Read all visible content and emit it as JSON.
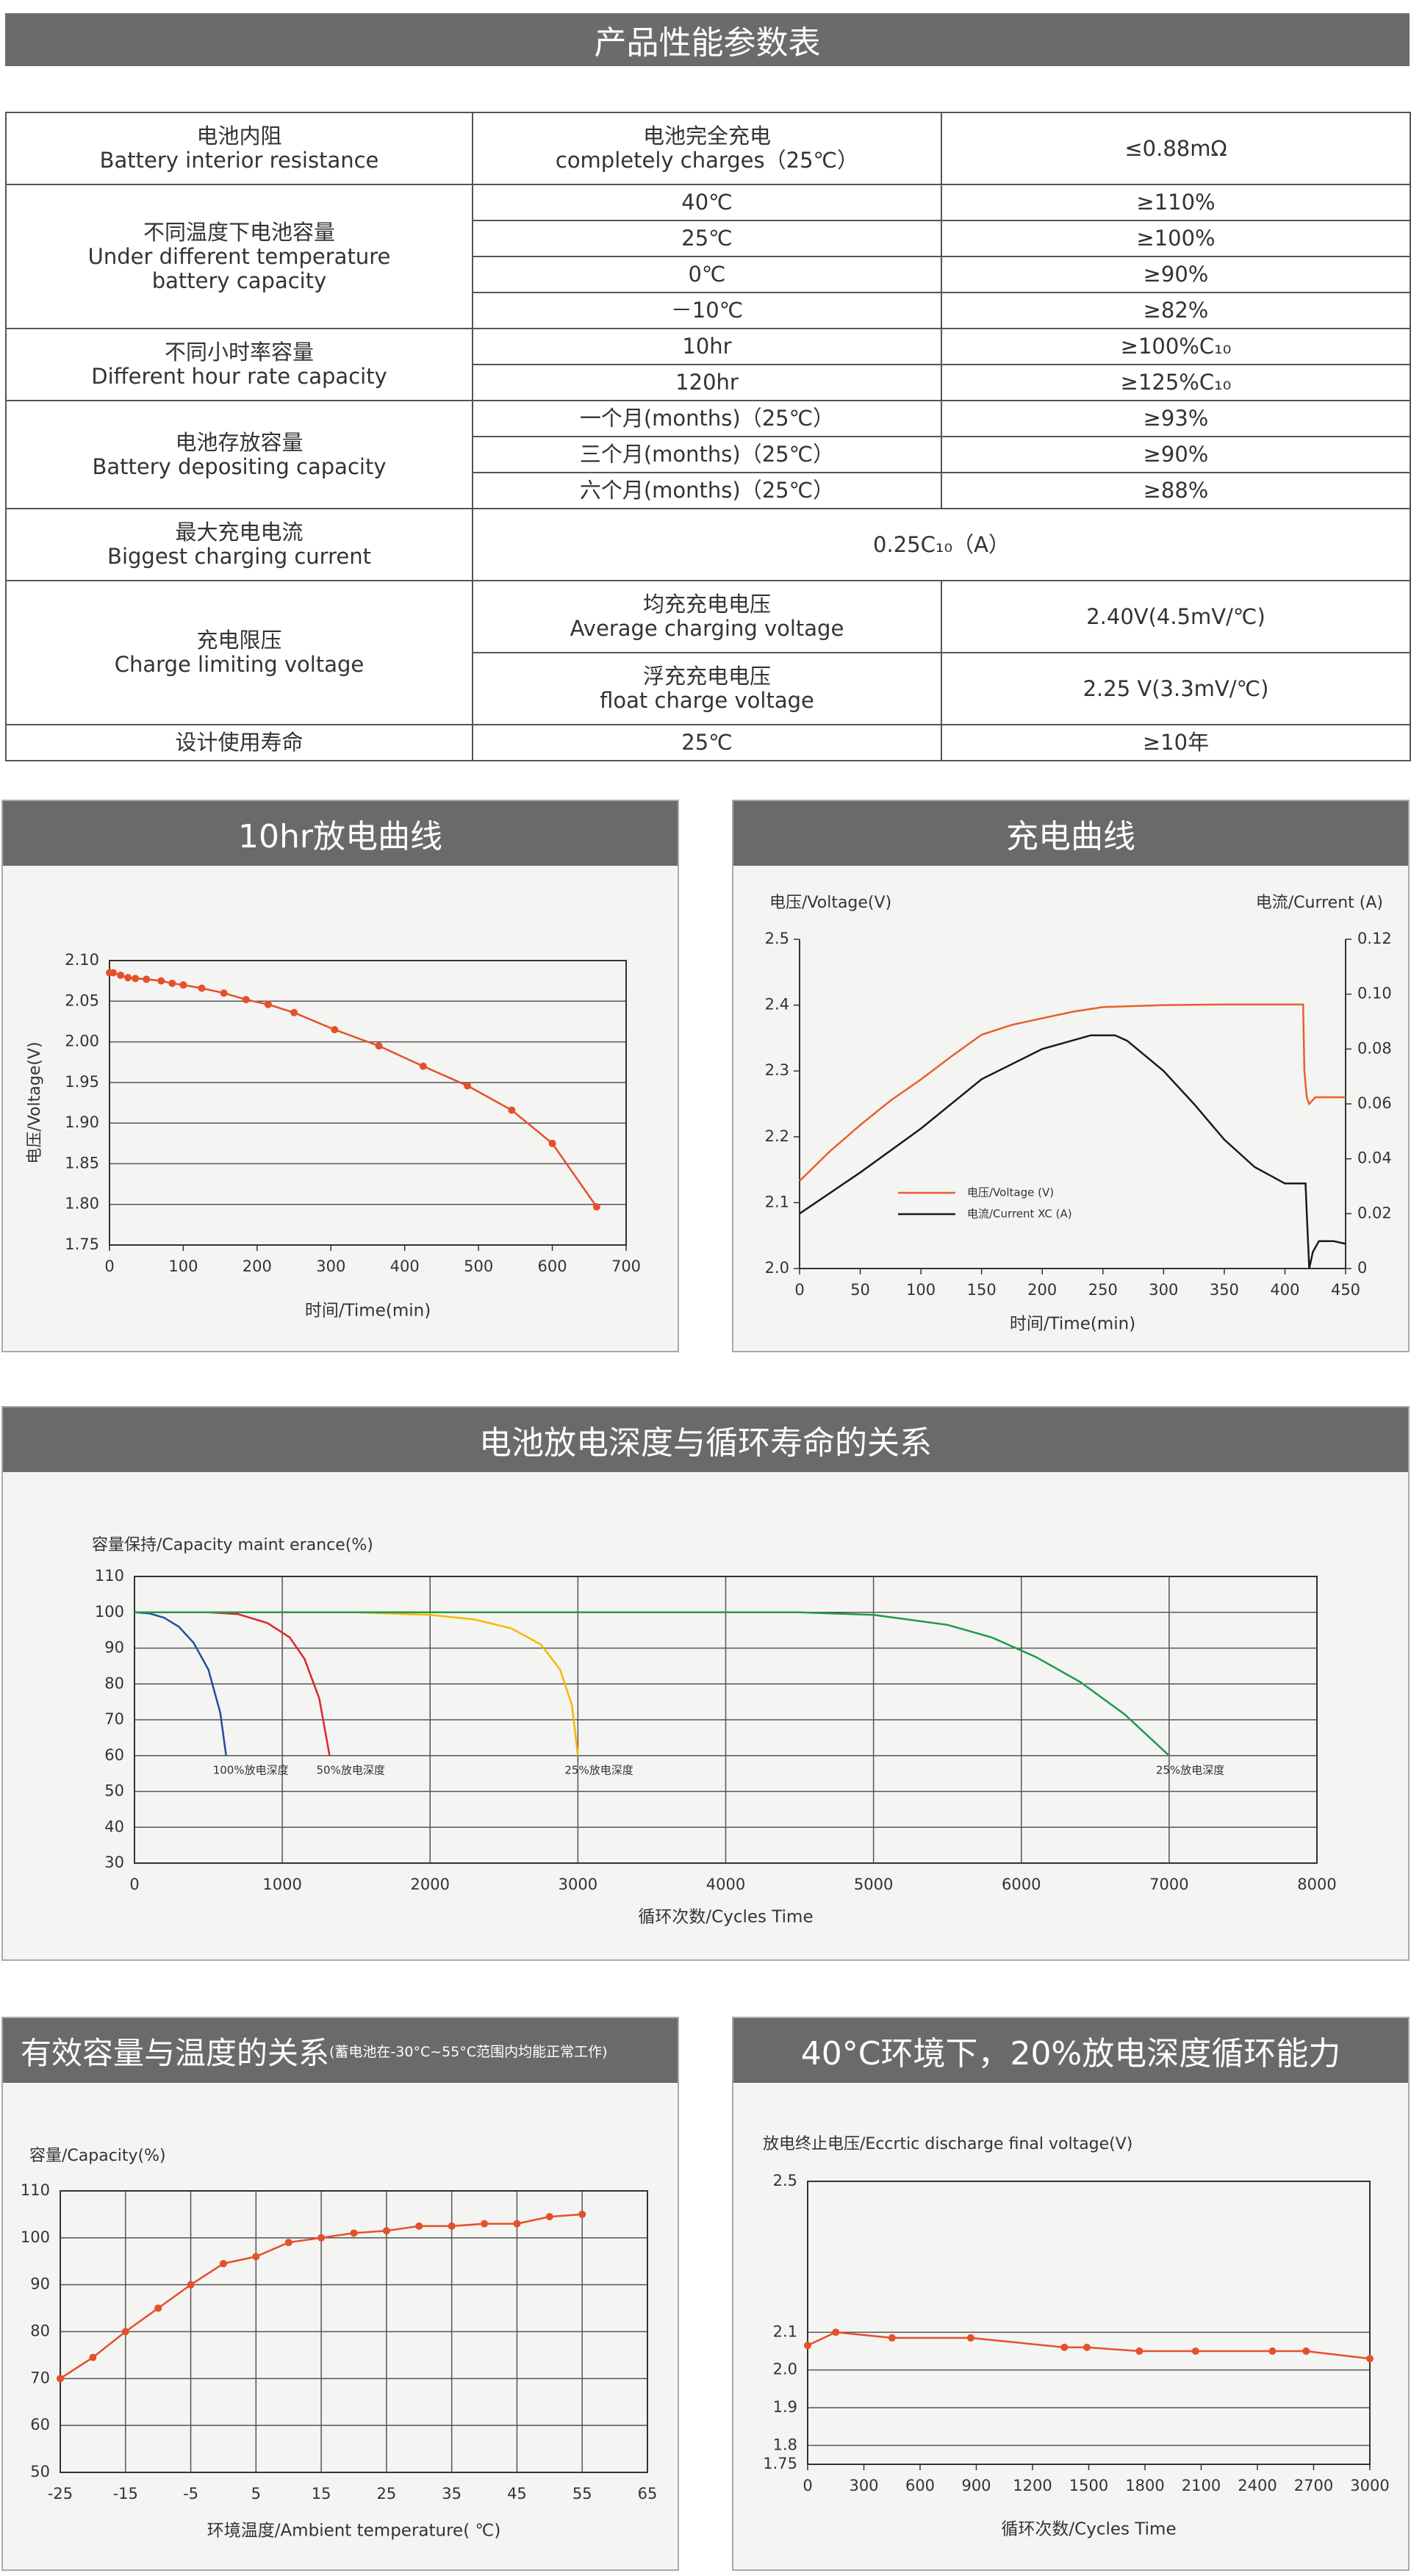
{
  "header": {
    "title": "产品性能参数表"
  },
  "table": {
    "groups": [
      {
        "label": "电池内阻\nBattery interior resistance",
        "rows": [
          [
            "电池完全充电\ncompletely charges（25℃）",
            "≤0.88mΩ"
          ]
        ]
      },
      {
        "label": "不同温度下电池容量\nUnder different temperature\nbattery capacity",
        "rows": [
          [
            "40℃",
            "≥110%"
          ],
          [
            "25℃",
            "≥100%"
          ],
          [
            "0℃",
            "≥90%"
          ],
          [
            "－10℃",
            "≥82%"
          ]
        ]
      },
      {
        "label": "不同小时率容量\nDifferent hour rate capacity",
        "rows": [
          [
            "10hr",
            "≥100%C₁₀"
          ],
          [
            "120hr",
            "≥125%C₁₀"
          ]
        ]
      },
      {
        "label": "电池存放容量\nBattery depositing capacity",
        "rows": [
          [
            "一个月(months)（25℃）",
            "≥93%"
          ],
          [
            "三个月(months)（25℃）",
            "≥90%"
          ],
          [
            "六个月(months)（25℃）",
            "≥88%"
          ]
        ]
      },
      {
        "label": "最大充电电流\nBiggest charging current",
        "rows": [
          [
            "0.25C₁₀（A）"
          ]
        ]
      },
      {
        "label": "充电限压\nCharge limiting voltage",
        "rows": [
          [
            "均充充电电压\nAverage charging voltage",
            "2.40V(4.5mV/℃)"
          ],
          [
            "浮充充电电压\nfloat charge voltage",
            "2.25 V(3.3mV/℃)"
          ]
        ]
      },
      {
        "label": "设计使用寿命",
        "rows": [
          [
            "25℃",
            "≥10年"
          ]
        ]
      }
    ]
  },
  "chart_data": [
    {
      "type": "line",
      "title": "10hr放电曲线",
      "xlabel": "时间/Time(min)",
      "ylabel": "电压/Voltage(V)",
      "xlim": [
        0,
        700
      ],
      "xticks": [
        0,
        100,
        200,
        300,
        400,
        500,
        600,
        700
      ],
      "ylim": [
        1.75,
        2.1
      ],
      "yticks": [
        1.75,
        {
          "value": 1.8,
          "label": "1.80"
        },
        1.85,
        {
          "value": 1.9,
          "label": "1.90"
        },
        1.95,
        {
          "value": 2,
          "label": "2.00"
        },
        2.05,
        {
          "value": 2.1,
          "label": "2.10"
        }
      ],
      "grid": "y",
      "markers": true,
      "series": [
        {
          "color": "#e4502a",
          "x": [
            0,
            5,
            15,
            25,
            35,
            50,
            70,
            85,
            100,
            125,
            155,
            185,
            215,
            250,
            305,
            365,
            425,
            485,
            545,
            600,
            660
          ],
          "values": [
            2.085,
            2.085,
            2.082,
            2.079,
            2.078,
            2.077,
            2.075,
            2.072,
            2.07,
            2.066,
            2.06,
            2.052,
            2.046,
            2.036,
            2.015,
            1.995,
            1.97,
            1.946,
            1.916,
            1.875,
            1.797
          ]
        }
      ]
    },
    {
      "type": "line",
      "title": "充电曲线",
      "xlabel": "时间/Time(min)",
      "ylabel": "电压/Voltage(V)",
      "y2label": "电流/Current (A)",
      "xlim": [
        0,
        450
      ],
      "xticks": [
        0,
        50,
        100,
        150,
        200,
        250,
        300,
        350,
        400,
        450
      ],
      "ylim": [
        2,
        2.5
      ],
      "yticks": [
        {
          "value": 2,
          "label": "2.0"
        },
        2.1,
        2.2,
        2.3,
        2.4,
        2.5
      ],
      "y2lim": [
        0,
        0.12
      ],
      "y2ticks": [
        0,
        0.02,
        0.04,
        0.06,
        0.08,
        {
          "value": 0.1,
          "label": "0.10"
        },
        0.12
      ],
      "grid": false,
      "markers": false,
      "legend": "center-left",
      "series": [
        {
          "name": "电压/Voltage (V)",
          "color": "#e8602c",
          "x": [
            0,
            25,
            50,
            75,
            100,
            125,
            150,
            175,
            200,
            225,
            250,
            300,
            350,
            415,
            416,
            418,
            420,
            425,
            450
          ],
          "values": [
            2.133,
            2.178,
            2.218,
            2.255,
            2.287,
            2.322,
            2.355,
            2.37,
            2.38,
            2.39,
            2.397,
            2.4,
            2.401,
            2.401,
            2.3,
            2.26,
            2.25,
            2.26,
            2.26
          ]
        },
        {
          "name": "电流/Current XC (A)",
          "color": "#1a1a1a",
          "axis": "y2",
          "x": [
            0,
            50,
            100,
            150,
            200,
            240,
            260,
            270,
            300,
            325,
            350,
            375,
            400,
            417,
            418,
            420,
            423,
            428,
            440,
            450
          ],
          "values": [
            0.02,
            0.035,
            0.051,
            0.069,
            0.08,
            0.085,
            0.085,
            0.083,
            0.072,
            0.06,
            0.047,
            0.037,
            0.031,
            0.031,
            0.02,
            0,
            0.006,
            0.01,
            0.01,
            0.009
          ]
        }
      ]
    },
    {
      "type": "line",
      "title": "电池放电深度与循环寿命的关系",
      "xlabel": "循环次数/Cycles Time",
      "ylabel": "容量保持/Capacity maint erance(%)",
      "xlim": [
        0,
        8000
      ],
      "xticks": [
        0,
        1000,
        2000,
        3000,
        4000,
        5000,
        6000,
        7000,
        8000
      ],
      "ylim": [
        30,
        110
      ],
      "yticks": [
        30,
        40,
        50,
        60,
        70,
        80,
        90,
        100,
        110
      ],
      "grid": "both",
      "markers": false,
      "legend": "line-end",
      "series": [
        {
          "name": "100%放电深度",
          "color": "#1f4e9c",
          "x": [
            0,
            100,
            200,
            300,
            400,
            500,
            580,
            620
          ],
          "values": [
            100,
            99.7,
            98.5,
            96,
            91.5,
            84,
            72,
            60
          ]
        },
        {
          "name": "50%放电深度",
          "color": "#d9262e",
          "x": [
            0,
            500,
            700,
            900,
            1050,
            1150,
            1250,
            1320
          ],
          "values": [
            100,
            100,
            99.5,
            97,
            93,
            87,
            76,
            60
          ]
        },
        {
          "name": "25%放电深度",
          "color": "#f5b800",
          "x": [
            0,
            1500,
            2000,
            2300,
            2550,
            2750,
            2880,
            2960,
            3000
          ],
          "values": [
            100,
            100,
            99.3,
            98,
            95.5,
            91,
            84,
            74,
            60
          ]
        },
        {
          "name": "25%放电深度",
          "color": "#1e9a47",
          "x": [
            0,
            4500,
            5000,
            5500,
            5800,
            6100,
            6400,
            6700,
            7000
          ],
          "values": [
            100,
            100,
            99.3,
            96.5,
            93,
            87.5,
            80.5,
            71.5,
            60
          ]
        }
      ]
    },
    {
      "type": "line",
      "title": "有效容量与温度的关系",
      "subtitle": "(蓄电池在-30°C~55°C范围内均能正常工作)",
      "xlabel": "环境温度/Ambient temperature( ℃)",
      "ylabel": "容量/Capacity(%)",
      "xlim": [
        -25,
        65
      ],
      "xticks": [
        -25,
        -15,
        -5,
        5,
        15,
        25,
        35,
        45,
        55,
        65
      ],
      "ylim": [
        50,
        110
      ],
      "yticks": [
        50,
        60,
        70,
        80,
        90,
        100,
        110
      ],
      "grid": "both",
      "markers": true,
      "series": [
        {
          "color": "#e4502a",
          "x": [
            -25,
            -20,
            -15,
            -10,
            -5,
            0,
            5,
            10,
            15,
            20,
            25,
            30,
            35,
            40,
            45,
            50,
            55
          ],
          "values": [
            70,
            74.5,
            80,
            85,
            90,
            94.5,
            96,
            99,
            100,
            101,
            101.5,
            102.5,
            102.5,
            103,
            103,
            104.5,
            105
          ]
        }
      ]
    },
    {
      "type": "line",
      "title": "40°C环境下，20%放电深度循环能力",
      "xlabel": "循环次数/Cycles Time",
      "ylabel": "放电终止电压/Eccrtic discharge final voltage(V)",
      "xlim": [
        0,
        3000
      ],
      "xticks": [
        0,
        300,
        600,
        900,
        1200,
        1500,
        1800,
        2100,
        2400,
        2700,
        3000
      ],
      "ylim": [
        1.75,
        2.5
      ],
      "yticks": [
        1.75,
        1.8,
        1.9,
        {
          "value": 2,
          "label": "2.0"
        },
        2.1,
        2.5
      ],
      "grid": "y",
      "markers": true,
      "series": [
        {
          "color": "#e4502a",
          "x": [
            0,
            150,
            450,
            870,
            1370,
            1490,
            1770,
            2070,
            2480,
            2660,
            3000
          ],
          "values": [
            2.065,
            2.1,
            2.085,
            2.085,
            2.06,
            2.06,
            2.05,
            2.05,
            2.05,
            2.05,
            2.03
          ]
        }
      ]
    }
  ]
}
